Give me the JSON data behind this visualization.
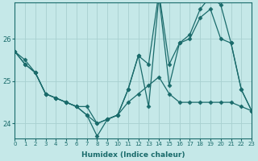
{
  "xlabel": "Humidex (Indice chaleur)",
  "background_color": "#c5e8e8",
  "grid_color": "#a8d0d0",
  "line_color": "#1a6b6b",
  "x": [
    0,
    1,
    2,
    3,
    4,
    5,
    6,
    7,
    8,
    9,
    10,
    11,
    12,
    13,
    14,
    15,
    16,
    17,
    18,
    19,
    20,
    21,
    22,
    23
  ],
  "series1": [
    25.7,
    25.5,
    25.2,
    24.7,
    24.6,
    24.5,
    24.4,
    24.4,
    24.0,
    24.1,
    24.2,
    24.8,
    25.6,
    24.4,
    27.0,
    24.9,
    25.9,
    26.0,
    26.5,
    26.7,
    26.0,
    25.9,
    24.8,
    24.3
  ],
  "series2": [
    25.7,
    25.4,
    25.2,
    24.7,
    24.6,
    24.5,
    24.4,
    24.2,
    24.0,
    24.1,
    24.2,
    24.5,
    24.7,
    24.9,
    25.1,
    24.7,
    24.5,
    24.5,
    24.5,
    24.5,
    24.5,
    24.5,
    24.4,
    24.3
  ],
  "series3": [
    25.7,
    25.4,
    25.2,
    24.7,
    24.6,
    24.5,
    24.4,
    24.2,
    23.7,
    24.1,
    24.2,
    24.8,
    25.6,
    25.4,
    27.1,
    25.4,
    25.9,
    26.1,
    26.7,
    27.0,
    26.8,
    25.9,
    24.8,
    24.3
  ],
  "xlim": [
    0,
    23
  ],
  "ylim": [
    23.65,
    26.85
  ],
  "yticks": [
    24,
    25,
    26
  ],
  "marker": "D",
  "markersize": 2.5,
  "linewidth": 0.9
}
